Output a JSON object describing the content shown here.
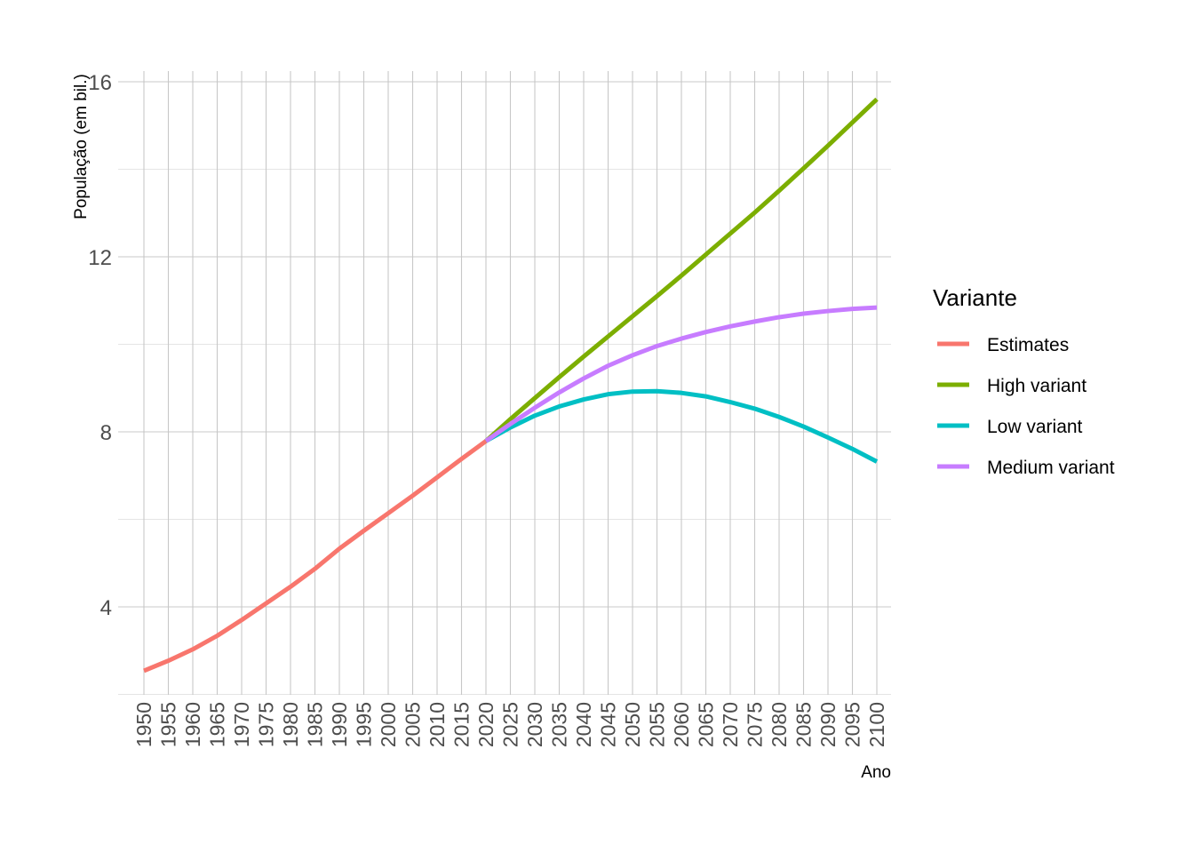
{
  "chart_data": {
    "type": "line",
    "title": "",
    "xlabel": "Ano",
    "ylabel": "População (em bil.)",
    "xlim": [
      1950,
      2100
    ],
    "ylim": [
      2,
      16.2
    ],
    "x_ticks": [
      1950,
      1955,
      1960,
      1965,
      1970,
      1975,
      1980,
      1985,
      1990,
      1995,
      2000,
      2005,
      2010,
      2015,
      2020,
      2025,
      2030,
      2035,
      2040,
      2045,
      2050,
      2055,
      2060,
      2065,
      2070,
      2075,
      2080,
      2085,
      2090,
      2095,
      2100
    ],
    "y_ticks": [
      4,
      8,
      12,
      16
    ],
    "y_minor_ticks": [
      2,
      6,
      10,
      14
    ],
    "grid": true,
    "legend": {
      "title": "Variante",
      "position": "right"
    },
    "series": [
      {
        "name": "Estimates",
        "color": "#F8766D",
        "x": [
          1950,
          1955,
          1960,
          1965,
          1970,
          1975,
          1980,
          1985,
          1990,
          1995,
          2000,
          2005,
          2010,
          2015,
          2020
        ],
        "values": [
          2.54,
          2.77,
          3.03,
          3.34,
          3.7,
          4.08,
          4.46,
          4.87,
          5.33,
          5.74,
          6.14,
          6.54,
          6.96,
          7.38,
          7.79
        ]
      },
      {
        "name": "High variant",
        "color": "#7CAE00",
        "x": [
          2020,
          2025,
          2030,
          2035,
          2040,
          2045,
          2050,
          2055,
          2060,
          2065,
          2070,
          2075,
          2080,
          2085,
          2090,
          2095,
          2100
        ],
        "values": [
          7.79,
          8.29,
          8.77,
          9.25,
          9.72,
          10.18,
          10.64,
          11.1,
          11.57,
          12.05,
          12.53,
          13.01,
          13.51,
          14.02,
          14.54,
          15.07,
          15.6
        ]
      },
      {
        "name": "Low variant",
        "color": "#00BFC4",
        "x": [
          2020,
          2025,
          2030,
          2035,
          2040,
          2045,
          2050,
          2055,
          2060,
          2065,
          2070,
          2075,
          2080,
          2085,
          2090,
          2095,
          2100
        ],
        "values": [
          7.79,
          8.1,
          8.37,
          8.58,
          8.74,
          8.86,
          8.92,
          8.93,
          8.89,
          8.81,
          8.68,
          8.53,
          8.34,
          8.12,
          7.87,
          7.61,
          7.32
        ]
      },
      {
        "name": "Medium variant",
        "color": "#C77CFF",
        "x": [
          2020,
          2025,
          2030,
          2035,
          2040,
          2045,
          2050,
          2055,
          2060,
          2065,
          2070,
          2075,
          2080,
          2085,
          2090,
          2095,
          2100
        ],
        "values": [
          7.79,
          8.18,
          8.55,
          8.9,
          9.22,
          9.51,
          9.75,
          9.96,
          10.13,
          10.28,
          10.41,
          10.52,
          10.62,
          10.7,
          10.76,
          10.81,
          10.84
        ]
      }
    ]
  }
}
